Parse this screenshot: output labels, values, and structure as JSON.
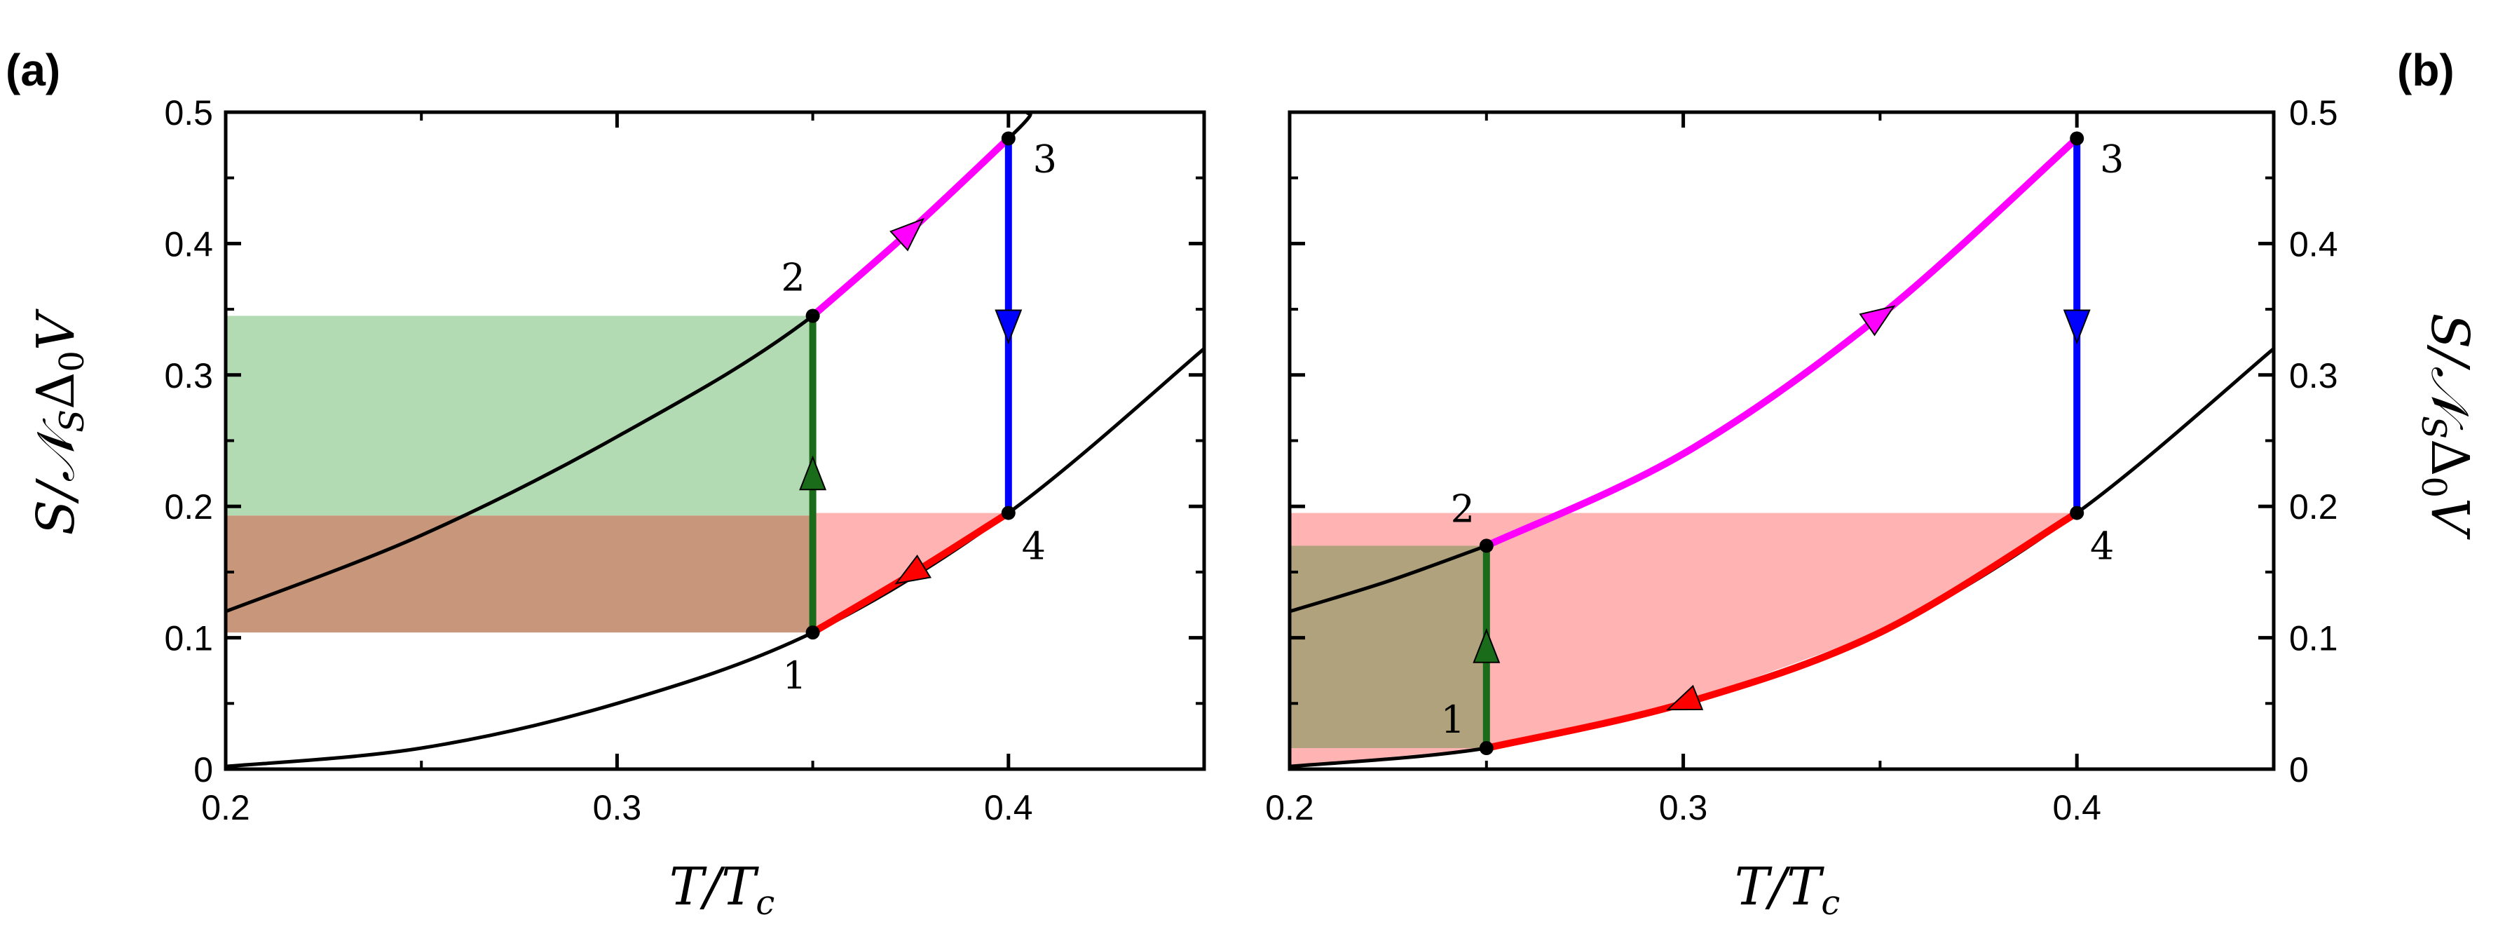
{
  "figure": {
    "ylabel_main": "S/𝒩",
    "ylabel_sub": "S",
    "ylabel_tail": "Δ",
    "ylabel_sub2": "0",
    "ylabel_end": "V",
    "xlabel_main": "T/T",
    "xlabel_sub": "c"
  },
  "chart_data": [
    {
      "type": "line",
      "panel": "(a)",
      "xlabel": "T/T_c",
      "ylabel": "S/N_S Δ0 V",
      "xlim": [
        0.2,
        0.45
      ],
      "ylim": [
        0,
        0.5
      ],
      "xticks": [
        "0.2",
        "0.3",
        "0.4"
      ],
      "yticks": [
        "0",
        "0.1",
        "0.2",
        "0.3",
        "0.4",
        "0.5"
      ],
      "yaxis_side": "left",
      "curves": [
        {
          "color": "#000000",
          "x": [
            0.2,
            0.25,
            0.3,
            0.35,
            0.4,
            0.45
          ],
          "y": [
            0.002,
            0.016,
            0.05,
            0.104,
            0.195,
            0.32
          ]
        },
        {
          "color": "#000000",
          "x": [
            0.2,
            0.25,
            0.3,
            0.35,
            0.4,
            0.405
          ],
          "y": [
            0.12,
            0.178,
            0.253,
            0.345,
            0.48,
            0.5
          ]
        }
      ],
      "cycle": [
        {
          "from": 1,
          "to": 2,
          "color": "#1a6b1a",
          "x": [
            0.35,
            0.35
          ],
          "y": [
            0.104,
            0.345
          ]
        },
        {
          "from": 2,
          "to": 3,
          "color": "#ff00ff",
          "x": [
            0.35,
            0.375,
            0.4
          ],
          "y": [
            0.345,
            0.41,
            0.48
          ]
        },
        {
          "from": 3,
          "to": 4,
          "color": "#0000ff",
          "x": [
            0.4,
            0.4
          ],
          "y": [
            0.48,
            0.195
          ]
        },
        {
          "from": 4,
          "to": 1,
          "color": "#ff0000",
          "x": [
            0.4,
            0.375,
            0.35
          ],
          "y": [
            0.195,
            0.148,
            0.104
          ]
        }
      ],
      "points": [
        {
          "label": "1",
          "x": 0.35,
          "y": 0.104
        },
        {
          "label": "2",
          "x": 0.35,
          "y": 0.345
        },
        {
          "label": "3",
          "x": 0.4,
          "y": 0.48
        },
        {
          "label": "4",
          "x": 0.4,
          "y": 0.195
        }
      ],
      "regions": [
        {
          "color": "#b3dbb3",
          "x": [
            0.2,
            0.35
          ],
          "y": [
            0.193,
            0.345
          ]
        },
        {
          "color": "#c8967a",
          "x": [
            0.2,
            0.35
          ],
          "y": [
            0.104,
            0.193
          ]
        },
        {
          "color": "#ffb3b3",
          "x": [
            0.35,
            0.4
          ],
          "y_top": 0.195,
          "curve_bottom": true
        }
      ]
    },
    {
      "type": "line",
      "panel": "(b)",
      "xlabel": "T/T_c",
      "ylabel": "S/N_S Δ0 V",
      "xlim": [
        0.2,
        0.45
      ],
      "ylim": [
        0,
        0.5
      ],
      "xticks": [
        "0.2",
        "0.3",
        "0.4"
      ],
      "yticks": [
        "0",
        "0.1",
        "0.2",
        "0.3",
        "0.4",
        "0.5"
      ],
      "yaxis_side": "right",
      "curves": [
        {
          "color": "#000000",
          "x": [
            0.2,
            0.25,
            0.3,
            0.35,
            0.4,
            0.45
          ],
          "y": [
            0.002,
            0.016,
            0.05,
            0.104,
            0.195,
            0.32
          ]
        },
        {
          "color": "#000000",
          "x": [
            0.2,
            0.225,
            0.25
          ],
          "y": [
            0.12,
            0.143,
            0.17
          ]
        }
      ],
      "cycle": [
        {
          "from": 1,
          "to": 2,
          "color": "#1a6b1a",
          "x": [
            0.25,
            0.25
          ],
          "y": [
            0.016,
            0.17
          ]
        },
        {
          "from": 2,
          "to": 3,
          "color": "#ff00ff",
          "x": [
            0.25,
            0.3,
            0.35,
            0.4
          ],
          "y": [
            0.17,
            0.24,
            0.345,
            0.48
          ]
        },
        {
          "from": 3,
          "to": 4,
          "color": "#0000ff",
          "x": [
            0.4,
            0.4
          ],
          "y": [
            0.48,
            0.195
          ]
        },
        {
          "from": 4,
          "to": 1,
          "color": "#ff0000",
          "x": [
            0.4,
            0.35,
            0.3,
            0.25
          ],
          "y": [
            0.195,
            0.104,
            0.05,
            0.016
          ]
        }
      ],
      "points": [
        {
          "label": "1",
          "x": 0.25,
          "y": 0.016
        },
        {
          "label": "2",
          "x": 0.25,
          "y": 0.17
        },
        {
          "label": "3",
          "x": 0.4,
          "y": 0.48
        },
        {
          "label": "4",
          "x": 0.4,
          "y": 0.195
        }
      ],
      "regions": [
        {
          "color": "#ffb3b3",
          "x": [
            0.2,
            0.4
          ],
          "y_top": 0.195,
          "curve_bottom": true
        },
        {
          "color": "#b0a27c",
          "x": [
            0.2,
            0.25
          ],
          "y": [
            0.016,
            0.17
          ]
        }
      ]
    }
  ]
}
